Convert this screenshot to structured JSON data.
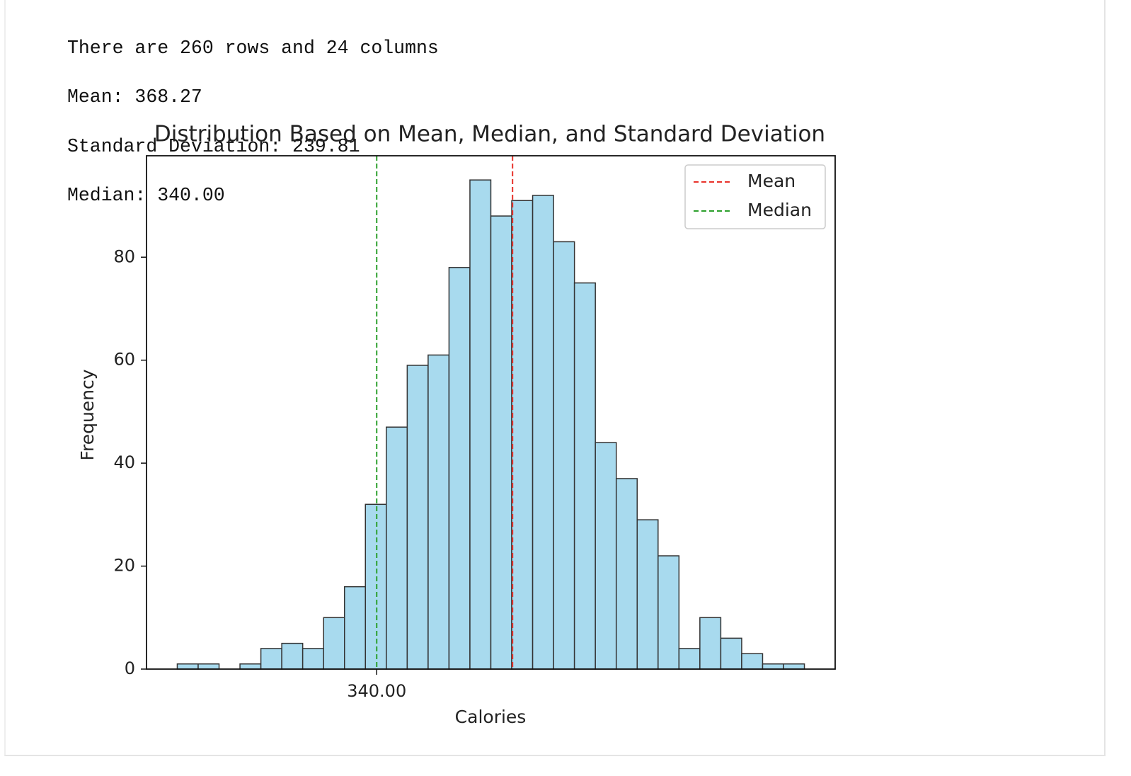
{
  "output": [
    "There are 260 rows and 24 columns",
    "Mean: 368.27",
    "Standard Deviation: 239.81",
    "Median: 340.00"
  ],
  "chart_data": {
    "type": "histogram",
    "title": "Distribution Based on Mean, Median, and Standard Deviation",
    "x_label": "Calories",
    "y_label": "Frequency",
    "bins": [
      298.5,
      302.85,
      307.2,
      311.55,
      315.9,
      320.25,
      324.6,
      328.95,
      333.3,
      337.65,
      342.0,
      346.35,
      350.7,
      355.05,
      359.4,
      363.75,
      368.1,
      372.45,
      376.8,
      381.15,
      385.5,
      389.85,
      394.2,
      398.55,
      402.9,
      407.25,
      411.6,
      415.95,
      420.3,
      424.65,
      429.0
    ],
    "values": [
      1,
      1,
      0,
      1,
      4,
      5,
      4,
      10,
      16,
      32,
      47,
      59,
      61,
      78,
      95,
      88,
      91,
      92,
      83,
      75,
      44,
      37,
      29,
      22,
      4,
      10,
      6,
      3,
      1,
      1
    ],
    "color": "#a8daee",
    "edgecolor": "#333333",
    "vlines": [
      {
        "name": "Mean",
        "value": 368.27,
        "color": "#e8312a"
      },
      {
        "name": "Median",
        "value": 340,
        "color": "#2ca02c"
      }
    ],
    "xlim": [
      292.1,
      435.4
    ],
    "ylim": [
      0,
      99.7
    ],
    "xticks": [
      {
        "value": 340,
        "label": "340.00"
      }
    ],
    "yticks": [
      0,
      20,
      40,
      60,
      80
    ],
    "legend": "upper right"
  }
}
